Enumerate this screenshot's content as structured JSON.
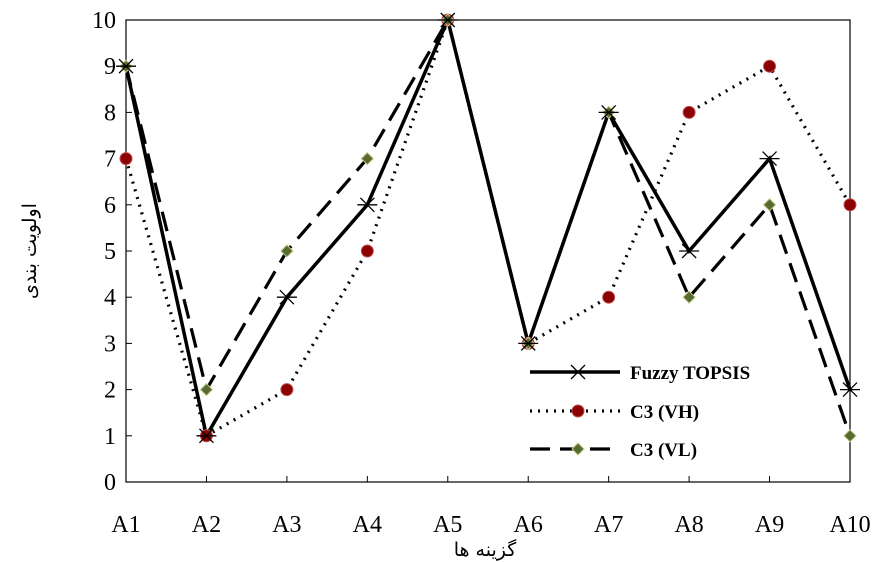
{
  "chart_data": {
    "type": "line",
    "categories": [
      "A1",
      "A2",
      "A3",
      "A4",
      "A5",
      "A6",
      "A7",
      "A8",
      "A9",
      "A10"
    ],
    "ylim": [
      0,
      10
    ],
    "yticks": [
      "0",
      "1",
      "2",
      "3",
      "4",
      "5",
      "6",
      "7",
      "8",
      "9",
      "10"
    ],
    "xlabel": "گزینه ها",
    "ylabel": "اولویت بندی",
    "grid": false,
    "legend_position": "bottom-right",
    "series": [
      {
        "name": "Fuzzy TOPSIS",
        "values": [
          9,
          1,
          4,
          6,
          10,
          3,
          8,
          5,
          7,
          2
        ],
        "line": "solid",
        "marker": "star",
        "color": "#000000"
      },
      {
        "name": "C3 (VH)",
        "values": [
          7,
          1,
          2,
          5,
          10,
          3,
          4,
          8,
          9,
          6
        ],
        "line": "dotted",
        "marker": "circle",
        "color": "#8b0000"
      },
      {
        "name": "C3 (VL)",
        "values": [
          9,
          2,
          5,
          7,
          10,
          3,
          8,
          4,
          6,
          1
        ],
        "line": "dashed",
        "marker": "diamond",
        "color": "#556b2f"
      }
    ]
  }
}
